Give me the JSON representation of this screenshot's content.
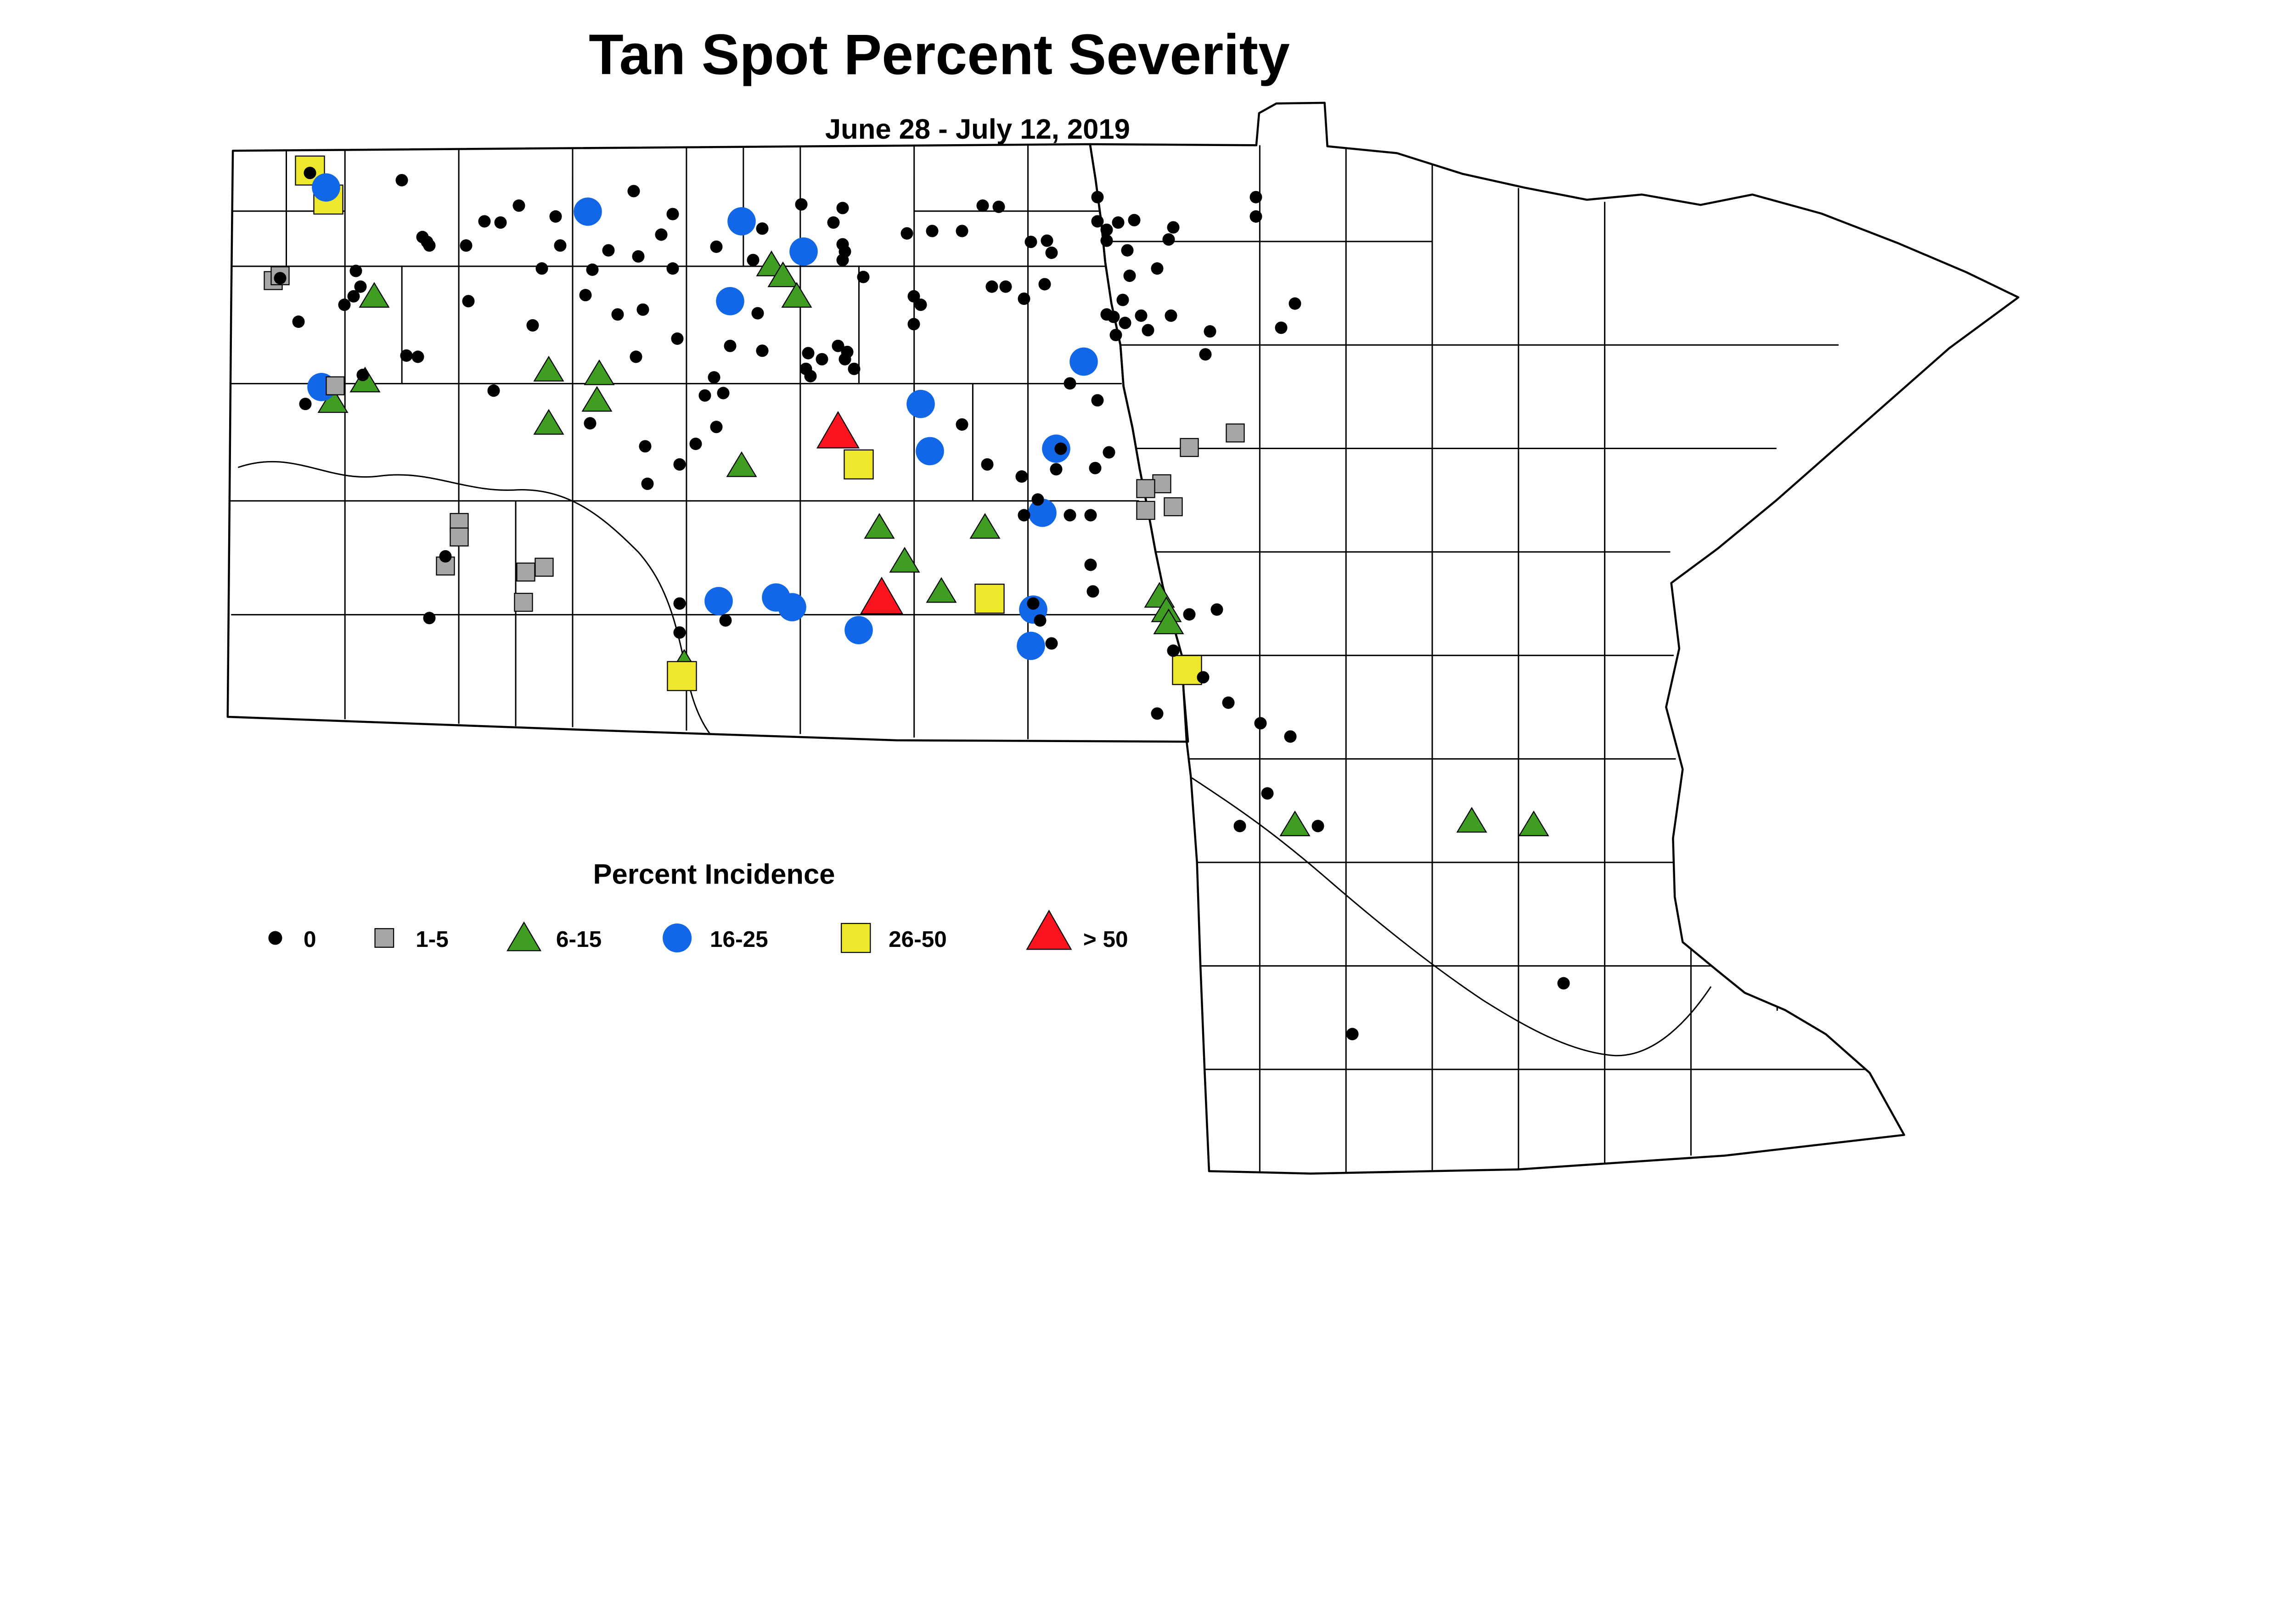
{
  "header": {
    "title": "Tan Spot Percent Severity",
    "subtitle": "June 28 - July 12, 2019"
  },
  "legend": {
    "title": "Percent Incidence",
    "items": [
      {
        "label": "0",
        "symbol": "dot",
        "color": "#000000"
      },
      {
        "label": "1-5",
        "symbol": "square",
        "color": "#a6a6a6"
      },
      {
        "label": "6-15",
        "symbol": "triangle",
        "color": "#3f9e22"
      },
      {
        "label": "16-25",
        "symbol": "circle",
        "color": "#1266e8"
      },
      {
        "label": "26-50",
        "symbol": "square",
        "color": "#efe72b"
      },
      {
        "label": "> 50",
        "symbol": "triangle",
        "color": "#fa1420"
      }
    ]
  },
  "chart_data": {
    "type": "scatter",
    "subtype": "symbol-map",
    "region": "North Dakota and Minnesota county map",
    "title": "Tan Spot Percent Severity",
    "subtitle": "June 28 - July 12, 2019",
    "legend_title": "Percent Incidence",
    "units": "point coordinates are percent of full canvas [x 0-100 left to right, y 0-100 top to bottom]; optional third value is symbol scale",
    "series": [
      {
        "name": "0",
        "symbol": "dot",
        "color": "#000000",
        "points": [
          [
            13.5,
            14.3
          ],
          [
            17.5,
            14.9
          ],
          [
            21.1,
            18.3
          ],
          [
            21.8,
            18.4
          ],
          [
            18.4,
            19.6
          ],
          [
            18.6,
            20.0
          ],
          [
            18.7,
            20.3
          ],
          [
            20.3,
            20.3
          ],
          [
            22.6,
            17.0
          ],
          [
            24.2,
            17.9
          ],
          [
            24.4,
            20.3
          ],
          [
            23.6,
            22.2
          ],
          [
            25.8,
            22.3
          ],
          [
            12.2,
            23.0
          ],
          [
            15.5,
            22.4
          ],
          [
            15.7,
            23.7
          ],
          [
            15.4,
            24.5
          ],
          [
            15.0,
            25.2
          ],
          [
            20.4,
            24.9
          ],
          [
            25.5,
            24.4
          ],
          [
            13.0,
            26.6
          ],
          [
            23.2,
            26.9
          ],
          [
            17.7,
            29.4
          ],
          [
            18.2,
            29.5
          ],
          [
            15.8,
            31.0
          ],
          [
            13.3,
            33.4
          ],
          [
            21.5,
            32.3
          ],
          [
            25.7,
            35.0
          ],
          [
            27.6,
            15.8
          ],
          [
            29.3,
            17.7
          ],
          [
            28.8,
            19.4
          ],
          [
            33.2,
            18.9
          ],
          [
            31.2,
            20.4
          ],
          [
            32.8,
            21.5
          ],
          [
            34.9,
            16.9
          ],
          [
            36.7,
            17.2
          ],
          [
            36.3,
            18.4
          ],
          [
            36.7,
            20.2
          ],
          [
            36.8,
            20.8
          ],
          [
            36.7,
            21.5
          ],
          [
            37.6,
            22.9
          ],
          [
            39.5,
            19.3
          ],
          [
            40.6,
            19.1
          ],
          [
            41.9,
            19.1
          ],
          [
            26.5,
            20.7
          ],
          [
            27.8,
            21.2
          ],
          [
            29.3,
            22.2
          ],
          [
            26.9,
            26.0
          ],
          [
            28.0,
            25.6
          ],
          [
            29.5,
            28.0
          ],
          [
            27.7,
            29.5
          ],
          [
            31.8,
            28.6
          ],
          [
            33.0,
            25.9
          ],
          [
            33.2,
            29.0
          ],
          [
            31.1,
            31.2
          ],
          [
            30.7,
            32.7
          ],
          [
            31.5,
            32.5
          ],
          [
            31.2,
            35.3
          ],
          [
            30.3,
            36.7
          ],
          [
            28.1,
            36.9
          ],
          [
            39.8,
            24.5
          ],
          [
            40.1,
            25.2
          ],
          [
            39.8,
            26.8
          ],
          [
            35.2,
            29.2
          ],
          [
            35.8,
            29.7
          ],
          [
            35.1,
            30.5
          ],
          [
            35.3,
            31.1
          ],
          [
            36.5,
            28.6
          ],
          [
            36.9,
            29.1
          ],
          [
            36.8,
            29.7
          ],
          [
            37.2,
            30.5
          ],
          [
            41.9,
            35.1
          ],
          [
            29.6,
            38.4
          ],
          [
            28.2,
            40.0
          ],
          [
            29.6,
            49.9
          ],
          [
            31.6,
            51.3
          ],
          [
            29.6,
            52.3
          ],
          [
            19.4,
            46.0
          ],
          [
            18.7,
            51.1
          ],
          [
            42.8,
            17.0
          ],
          [
            43.5,
            17.1
          ],
          [
            47.8,
            16.3
          ],
          [
            47.8,
            18.3
          ],
          [
            48.7,
            18.4
          ],
          [
            49.4,
            18.2
          ],
          [
            48.2,
            19.0
          ],
          [
            48.2,
            19.9
          ],
          [
            44.9,
            20.0
          ],
          [
            45.6,
            19.9
          ],
          [
            45.8,
            20.9
          ],
          [
            49.1,
            20.7
          ],
          [
            51.1,
            18.8
          ],
          [
            50.9,
            19.8
          ],
          [
            54.7,
            16.3
          ],
          [
            54.7,
            17.9
          ],
          [
            50.4,
            22.2
          ],
          [
            49.2,
            22.8
          ],
          [
            43.2,
            23.7
          ],
          [
            43.8,
            23.7
          ],
          [
            45.5,
            23.5
          ],
          [
            44.6,
            24.7
          ],
          [
            48.9,
            24.8
          ],
          [
            48.2,
            26.0
          ],
          [
            48.5,
            26.2
          ],
          [
            49.0,
            26.7
          ],
          [
            49.7,
            26.1
          ],
          [
            51.0,
            26.1
          ],
          [
            50.0,
            27.3
          ],
          [
            48.6,
            27.7
          ],
          [
            52.7,
            27.4
          ],
          [
            52.5,
            29.3
          ],
          [
            55.8,
            27.1
          ],
          [
            56.4,
            25.1
          ],
          [
            46.6,
            31.7
          ],
          [
            47.8,
            33.1
          ],
          [
            46.2,
            37.1
          ],
          [
            48.3,
            37.4
          ],
          [
            43.0,
            38.4
          ],
          [
            44.5,
            39.4
          ],
          [
            46.0,
            38.8
          ],
          [
            47.7,
            38.7
          ],
          [
            45.2,
            41.3
          ],
          [
            44.6,
            42.6
          ],
          [
            46.6,
            42.6
          ],
          [
            47.5,
            42.6
          ],
          [
            47.5,
            46.7
          ],
          [
            47.6,
            48.9
          ],
          [
            45.0,
            49.9
          ],
          [
            45.3,
            51.3
          ],
          [
            45.8,
            53.2
          ],
          [
            51.8,
            50.8
          ],
          [
            53.0,
            50.4
          ],
          [
            51.1,
            53.8
          ],
          [
            52.4,
            56.0
          ],
          [
            53.5,
            58.1
          ],
          [
            50.4,
            59.0
          ],
          [
            54.9,
            59.8
          ],
          [
            56.2,
            60.9
          ],
          [
            55.2,
            65.6
          ],
          [
            54.0,
            68.3
          ],
          [
            57.4,
            68.3
          ],
          [
            68.1,
            81.3
          ],
          [
            58.9,
            85.5
          ]
        ]
      },
      {
        "name": "1-5",
        "symbol": "square",
        "color": "#a6a6a6",
        "points": [
          [
            11.9,
            23.2
          ],
          [
            12.2,
            22.8
          ],
          [
            14.6,
            31.9
          ],
          [
            20.0,
            43.2
          ],
          [
            20.0,
            44.4
          ],
          [
            19.4,
            46.8
          ],
          [
            22.9,
            47.3
          ],
          [
            23.7,
            46.9
          ],
          [
            22.8,
            49.8
          ],
          [
            53.8,
            35.8
          ],
          [
            51.8,
            37.0
          ],
          [
            50.6,
            40.0
          ],
          [
            49.9,
            40.4
          ],
          [
            49.9,
            42.2
          ],
          [
            51.1,
            41.9
          ]
        ]
      },
      {
        "name": "6-15",
        "symbol": "triangle",
        "color": "#3f9e22",
        "points": [
          [
            16.3,
            24.5
          ],
          [
            23.9,
            30.6
          ],
          [
            26.1,
            30.9
          ],
          [
            15.9,
            31.5
          ],
          [
            14.5,
            33.2
          ],
          [
            23.9,
            35.0
          ],
          [
            26.0,
            33.1
          ],
          [
            33.6,
            21.9
          ],
          [
            34.1,
            22.8
          ],
          [
            34.7,
            24.5
          ],
          [
            32.3,
            38.5
          ],
          [
            38.3,
            43.6
          ],
          [
            39.4,
            46.4
          ],
          [
            41.0,
            48.9
          ],
          [
            42.9,
            43.6
          ],
          [
            29.8,
            54.4,
            0.6
          ],
          [
            50.5,
            49.3
          ],
          [
            50.8,
            50.5
          ],
          [
            50.9,
            51.5
          ],
          [
            56.4,
            68.2
          ],
          [
            64.1,
            67.9
          ],
          [
            66.8,
            68.2
          ]
        ]
      },
      {
        "name": "16-25",
        "symbol": "circle",
        "color": "#1266e8",
        "points": [
          [
            14.2,
            15.5
          ],
          [
            25.6,
            17.5
          ],
          [
            14.0,
            32.0
          ],
          [
            32.3,
            18.3
          ],
          [
            35.0,
            20.8
          ],
          [
            31.8,
            24.9
          ],
          [
            40.1,
            33.4
          ],
          [
            40.5,
            37.3
          ],
          [
            46.0,
            37.1
          ],
          [
            45.4,
            42.4
          ],
          [
            47.2,
            29.9
          ],
          [
            45.0,
            50.4
          ],
          [
            44.9,
            53.4
          ],
          [
            31.3,
            49.7
          ],
          [
            33.8,
            49.4
          ],
          [
            34.5,
            50.2
          ],
          [
            37.4,
            52.1
          ]
        ]
      },
      {
        "name": "26-50",
        "symbol": "square",
        "color": "#efe72b",
        "points": [
          [
            13.5,
            14.1
          ],
          [
            14.3,
            16.5
          ],
          [
            37.4,
            38.4
          ],
          [
            43.1,
            49.5
          ],
          [
            29.7,
            55.9
          ],
          [
            51.7,
            55.4
          ]
        ]
      },
      {
        "name": "> 50",
        "symbol": "triangle",
        "color": "#fa1420",
        "points": [
          [
            36.5,
            35.7
          ],
          [
            38.4,
            49.4
          ]
        ]
      }
    ]
  }
}
